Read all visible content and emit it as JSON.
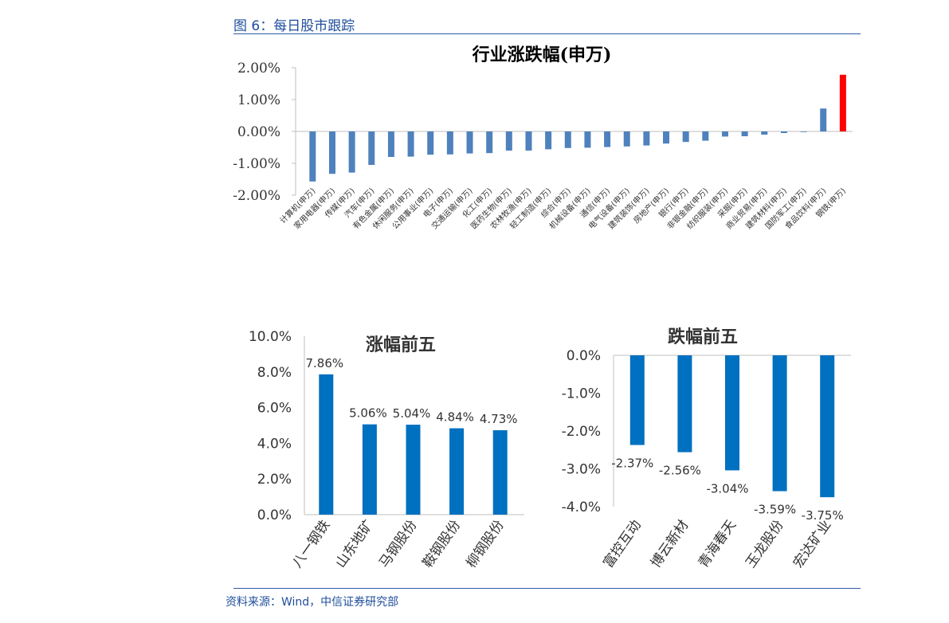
{
  "figure_title": "图 6：每日股市跟踪",
  "source_note": "资料来源：Wind，中信证券研究部",
  "colors": {
    "bar_blue": "#4f81bd",
    "bar_red": "#ff0000",
    "bar_dark_blue": "#0070c0",
    "header_blue": "#1f4e9c"
  },
  "chart_data": [
    {
      "type": "bar",
      "title": "行业涨跌幅(申万)",
      "ylim": [
        -2.0,
        2.0
      ],
      "yticks": [
        "2.00%",
        "1.00%",
        "0.00%",
        "-1.00%",
        "-2.00%"
      ],
      "ytick_values": [
        2.0,
        1.0,
        0.0,
        -1.0,
        -2.0
      ],
      "categories": [
        "计算机(申万)",
        "家用电器(申万)",
        "传媒(申万)",
        "汽车(申万)",
        "有色金属(申万)",
        "休闲服务(申万)",
        "公用事业(申万)",
        "电子(申万)",
        "交通运输(申万)",
        "化工(申万)",
        "医药生物(申万)",
        "农林牧渔(申万)",
        "轻工制造(申万)",
        "综合(申万)",
        "机械设备(申万)",
        "通信(申万)",
        "电气设备(申万)",
        "建筑装饰(申万)",
        "房地产(申万)",
        "银行(申万)",
        "非银金融(申万)",
        "纺织服装(申万)",
        "采掘(申万)",
        "商业贸易(申万)",
        "建筑材料(申万)",
        "国防军工(申万)",
        "食品饮料(申万)",
        "钢铁(申万)"
      ],
      "values": [
        -1.57,
        -1.33,
        -1.29,
        -1.05,
        -0.8,
        -0.79,
        -0.73,
        -0.72,
        -0.69,
        -0.68,
        -0.6,
        -0.6,
        -0.56,
        -0.52,
        -0.51,
        -0.49,
        -0.47,
        -0.44,
        -0.38,
        -0.33,
        -0.29,
        -0.16,
        -0.15,
        -0.1,
        -0.05,
        0.0,
        0.72,
        1.78
      ],
      "highlight_index": 27,
      "grid": false
    },
    {
      "type": "bar",
      "title": "涨幅前五",
      "ylim": [
        0.0,
        10.0
      ],
      "yticks": [
        "10.0%",
        "8.0%",
        "6.0%",
        "4.0%",
        "2.0%",
        "0.0%"
      ],
      "ytick_values": [
        10.0,
        8.0,
        6.0,
        4.0,
        2.0,
        0.0
      ],
      "categories": [
        "八一钢铁",
        "山东地矿",
        "马钢股份",
        "鞍钢股份",
        "柳钢股份"
      ],
      "values": [
        7.86,
        5.06,
        5.04,
        4.84,
        4.73
      ],
      "data_labels": [
        "7.86%",
        "5.06%",
        "5.04%",
        "4.84%",
        "4.73%"
      ],
      "grid": false
    },
    {
      "type": "bar",
      "title": "跌幅前五",
      "ylim": [
        -4.0,
        0.0
      ],
      "yticks": [
        "0.0%",
        "-1.0%",
        "-2.0%",
        "-3.0%",
        "-4.0%"
      ],
      "ytick_values": [
        0.0,
        -1.0,
        -2.0,
        -3.0,
        -4.0
      ],
      "categories": [
        "富控互动",
        "博云新材",
        "青海春天",
        "玉龙股份",
        "宏达矿业"
      ],
      "values": [
        -2.37,
        -2.56,
        -3.04,
        -3.59,
        -3.75
      ],
      "data_labels": [
        "-2.37%",
        "-2.56%",
        "-3.04%",
        "-3.59%",
        "-3.75%"
      ],
      "grid": false
    }
  ]
}
